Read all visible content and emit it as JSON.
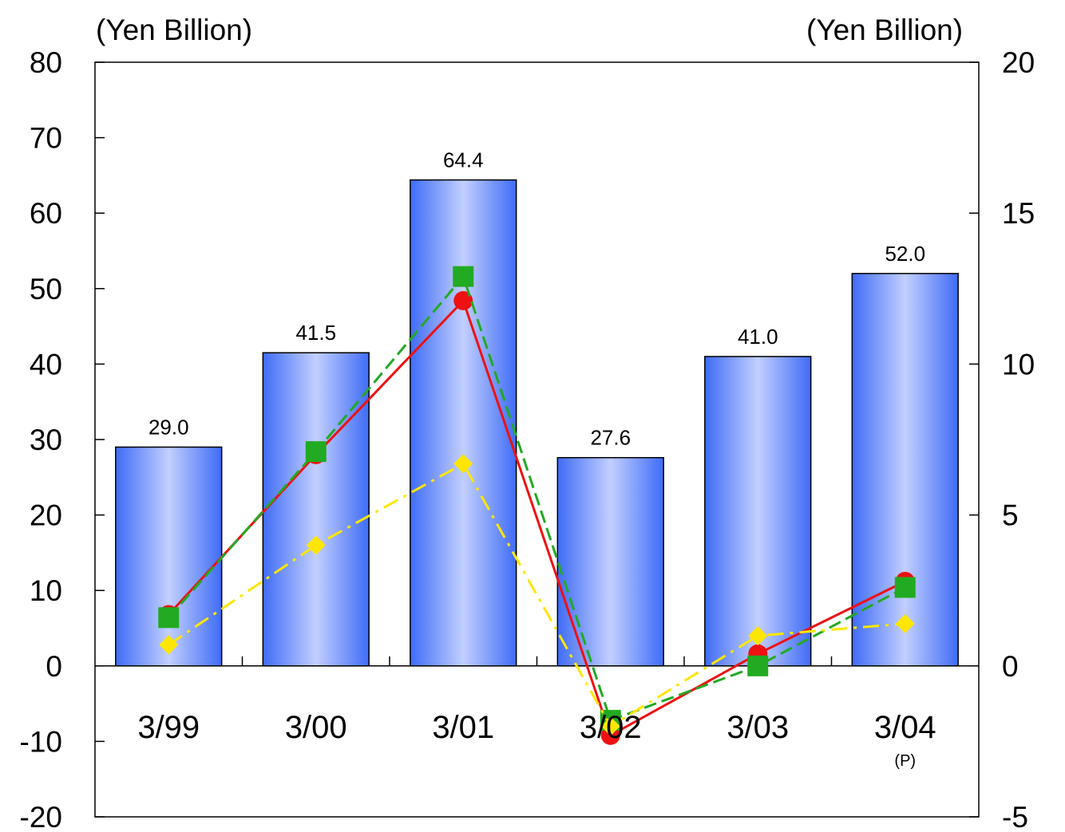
{
  "chart_data": {
    "type": "bar",
    "categories": [
      "3/99",
      "3/00",
      "3/01",
      "3/02",
      "3/03",
      "3/04"
    ],
    "category_notes": [
      "",
      "",
      "",
      "",
      "",
      "(P)"
    ],
    "left_axis": {
      "label": "(Yen Billion)",
      "ylim": [
        -20,
        80
      ],
      "ticks": [
        "80",
        "70",
        "60",
        "50",
        "40",
        "30",
        "20",
        "10",
        "0",
        "-10",
        "-20"
      ]
    },
    "right_axis": {
      "label": "(Yen Billion)",
      "ylim": [
        -5,
        20
      ],
      "ticks": [
        "20",
        "15",
        "10",
        "5",
        "0",
        "-5"
      ]
    },
    "bars": {
      "axis": "left",
      "values": [
        29.0,
        41.5,
        64.4,
        27.6,
        41.0,
        52.0
      ],
      "data_labels": [
        "29.0",
        "41.5",
        "64.4",
        "27.6",
        "41.0",
        "52.0"
      ],
      "colors": {
        "edge": "#3f6cf7",
        "center": "#c2cffe",
        "outline": "#000000"
      }
    },
    "series": [
      {
        "axis": "right",
        "marker": "circle",
        "line_style": "solid",
        "color": "#ee1111",
        "values": [
          1.7,
          7.0,
          12.1,
          -2.3,
          0.4,
          2.8
        ]
      },
      {
        "axis": "right",
        "marker": "square",
        "line_style": "dashed",
        "color": "#22aa22",
        "values": [
          1.6,
          7.1,
          12.9,
          -1.8,
          0.0,
          2.6
        ]
      },
      {
        "axis": "right",
        "marker": "diamond",
        "line_style": "dash-dot",
        "color": "#ffe600",
        "values": [
          0.7,
          4.0,
          6.7,
          -2.0,
          1.0,
          1.4
        ]
      }
    ],
    "grid": false,
    "legend": "none"
  }
}
